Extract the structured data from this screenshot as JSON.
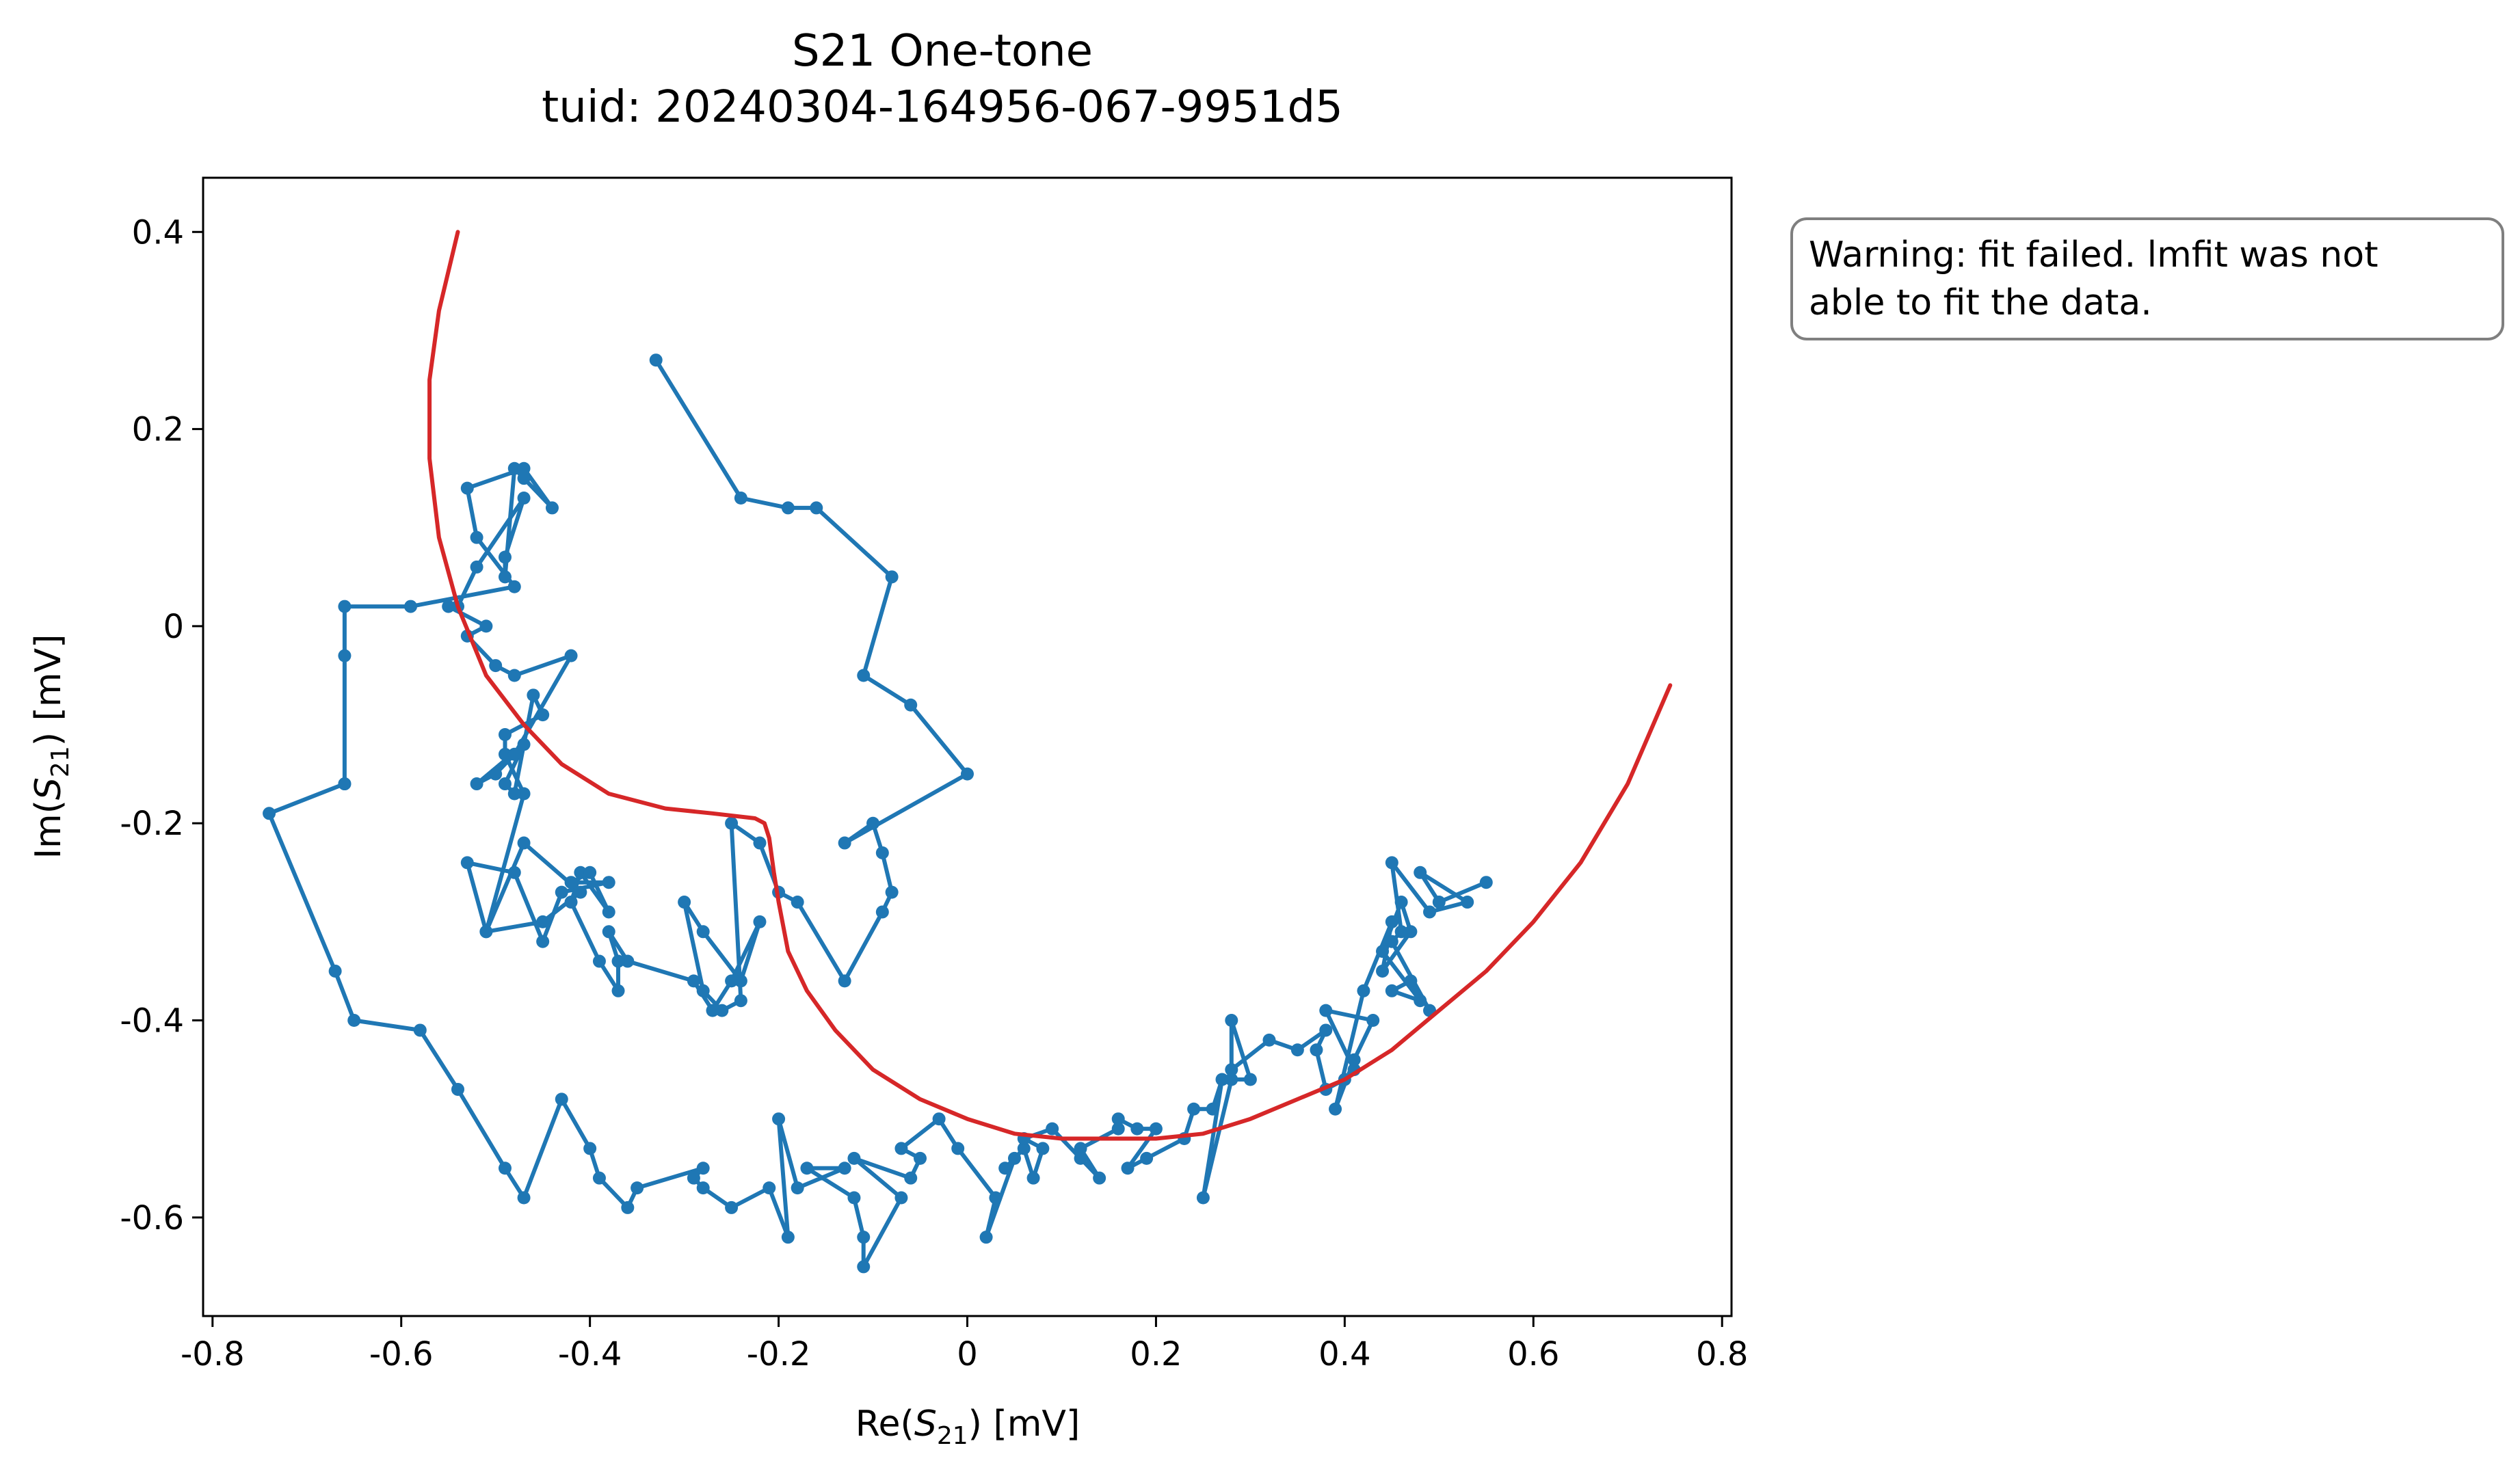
{
  "chart_data": {
    "type": "scatter",
    "title": [
      "S21 One-tone",
      "tuid: 20240304-164956-067-9951d5"
    ],
    "xlabel": {
      "prefix": "Re(",
      "symbol": "S",
      "sub": "21",
      "suffix": ") [mV]"
    },
    "ylabel": {
      "prefix": "Im(",
      "symbol": "S",
      "sub": "21",
      "suffix": ") [mV]"
    },
    "xlim": [
      -0.81,
      0.81
    ],
    "ylim": [
      -0.7,
      0.455
    ],
    "xticks": [
      -0.8,
      -0.6,
      -0.4,
      -0.2,
      0,
      0.2,
      0.4,
      0.6,
      0.8
    ],
    "xtick_labels": [
      "-0.8",
      "-0.6",
      "-0.4",
      "-0.2",
      "0",
      "0.2",
      "0.4",
      "0.6",
      "0.8"
    ],
    "yticks": [
      0.4,
      0.2,
      0,
      -0.2,
      -0.4,
      -0.6
    ],
    "ytick_labels": [
      "0.4",
      "0.2",
      "0",
      "-0.2",
      "-0.4",
      "-0.6"
    ],
    "grid": false,
    "annotation": {
      "lines": [
        "Warning: fit failed. lmfit was not",
        "able to fit the data."
      ],
      "placement": "outside-right-top"
    },
    "series": [
      {
        "color": "#1f77b4",
        "style": "line-with-markers",
        "x": [
          -0.33,
          -0.24,
          -0.19,
          -0.16,
          -0.08,
          -0.11,
          -0.06,
          0.0,
          -0.13,
          -0.1,
          -0.09,
          -0.08,
          -0.09,
          -0.13,
          -0.18,
          -0.2,
          -0.22,
          -0.25,
          -0.24,
          -0.26,
          -0.28,
          -0.3,
          -0.28,
          -0.24,
          -0.22,
          -0.25,
          -0.27,
          -0.29,
          -0.36,
          -0.38,
          -0.37,
          -0.37,
          -0.39,
          -0.42,
          -0.41,
          -0.38,
          -0.4,
          -0.42,
          -0.38,
          -0.43,
          -0.45,
          -0.48,
          -0.53,
          -0.51,
          -0.45,
          -0.41,
          -0.47,
          -0.51,
          -0.47,
          -0.49,
          -0.49,
          -0.45,
          -0.46,
          -0.48,
          -0.49,
          -0.47,
          -0.52,
          -0.5,
          -0.48,
          -0.42,
          -0.48,
          -0.5,
          -0.53,
          -0.51,
          -0.55,
          -0.54,
          -0.52,
          -0.47,
          -0.49,
          -0.49,
          -0.48,
          -0.47,
          -0.44,
          -0.47,
          -0.53,
          -0.52,
          -0.48,
          -0.59,
          -0.66,
          -0.66,
          -0.66,
          -0.66,
          -0.74,
          -0.67,
          -0.65,
          -0.58,
          -0.54,
          -0.49,
          -0.47,
          -0.43,
          -0.4,
          -0.39,
          -0.36,
          -0.35,
          -0.28,
          -0.29,
          -0.28,
          -0.25,
          -0.21,
          -0.19,
          -0.2,
          -0.18,
          -0.13,
          -0.17,
          -0.12,
          -0.11,
          -0.11,
          -0.07,
          -0.12,
          -0.06,
          -0.05,
          -0.07,
          -0.03,
          -0.01,
          0.03,
          0.02,
          0.05,
          0.04,
          0.06,
          0.07,
          0.08,
          0.06,
          0.09,
          0.12,
          0.14,
          0.12,
          0.16,
          0.16,
          0.18,
          0.2,
          0.17,
          0.19,
          0.23,
          0.24,
          0.26,
          0.27,
          0.25,
          0.28,
          0.3,
          0.28,
          0.28,
          0.32,
          0.35,
          0.38,
          0.37,
          0.38,
          0.4,
          0.41,
          0.38,
          0.43,
          0.41,
          0.39,
          0.42,
          0.45,
          0.44,
          0.47,
          0.46,
          0.44,
          0.48,
          0.45,
          0.47,
          0.49,
          0.45,
          0.46,
          0.45,
          0.49,
          0.53,
          0.48,
          0.5,
          0.55
        ],
        "y": [
          0.27,
          0.13,
          0.12,
          0.12,
          0.05,
          -0.05,
          -0.08,
          -0.15,
          -0.22,
          -0.2,
          -0.23,
          -0.27,
          -0.29,
          -0.36,
          -0.28,
          -0.27,
          -0.22,
          -0.2,
          -0.38,
          -0.39,
          -0.37,
          -0.28,
          -0.31,
          -0.36,
          -0.3,
          -0.36,
          -0.39,
          -0.36,
          -0.34,
          -0.31,
          -0.34,
          -0.37,
          -0.34,
          -0.28,
          -0.25,
          -0.29,
          -0.25,
          -0.26,
          -0.26,
          -0.27,
          -0.32,
          -0.25,
          -0.24,
          -0.31,
          -0.3,
          -0.27,
          -0.22,
          -0.31,
          -0.17,
          -0.13,
          -0.11,
          -0.09,
          -0.07,
          -0.17,
          -0.16,
          -0.12,
          -0.16,
          -0.15,
          -0.13,
          -0.03,
          -0.05,
          -0.04,
          -0.01,
          0.0,
          0.02,
          0.02,
          0.06,
          0.13,
          0.07,
          0.05,
          0.16,
          0.15,
          0.12,
          0.16,
          0.14,
          0.09,
          0.04,
          0.02,
          0.02,
          -0.03,
          -0.16,
          -0.16,
          -0.19,
          -0.35,
          -0.4,
          -0.41,
          -0.47,
          -0.55,
          -0.58,
          -0.48,
          -0.53,
          -0.56,
          -0.59,
          -0.57,
          -0.55,
          -0.56,
          -0.57,
          -0.59,
          -0.57,
          -0.62,
          -0.5,
          -0.57,
          -0.55,
          -0.55,
          -0.58,
          -0.62,
          -0.65,
          -0.58,
          -0.54,
          -0.56,
          -0.54,
          -0.53,
          -0.5,
          -0.53,
          -0.58,
          -0.62,
          -0.54,
          -0.55,
          -0.53,
          -0.56,
          -0.53,
          -0.52,
          -0.51,
          -0.54,
          -0.56,
          -0.53,
          -0.51,
          -0.5,
          -0.51,
          -0.51,
          -0.55,
          -0.54,
          -0.52,
          -0.49,
          -0.49,
          -0.46,
          -0.58,
          -0.46,
          -0.46,
          -0.4,
          -0.45,
          -0.42,
          -0.43,
          -0.41,
          -0.43,
          -0.47,
          -0.46,
          -0.45,
          -0.39,
          -0.4,
          -0.44,
          -0.49,
          -0.37,
          -0.3,
          -0.35,
          -0.31,
          -0.28,
          -0.33,
          -0.38,
          -0.37,
          -0.36,
          -0.39,
          -0.32,
          -0.31,
          -0.24,
          -0.29,
          -0.28,
          -0.25,
          -0.28,
          -0.26
        ]
      },
      {
        "color": "#d62728",
        "style": "line",
        "x": [
          -0.54,
          -0.56,
          -0.57,
          -0.57,
          -0.56,
          -0.54,
          -0.51,
          -0.47,
          -0.43,
          -0.38,
          -0.32,
          -0.27,
          -0.225,
          -0.215,
          -0.21,
          -0.205,
          -0.2,
          -0.19,
          -0.17,
          -0.14,
          -0.1,
          -0.05,
          0.0,
          0.05,
          0.1,
          0.15,
          0.2,
          0.25,
          0.3,
          0.35,
          0.4,
          0.45,
          0.5,
          0.55,
          0.6,
          0.65,
          0.7,
          0.745
        ],
        "y": [
          0.4,
          0.32,
          0.25,
          0.17,
          0.09,
          0.02,
          -0.05,
          -0.1,
          -0.14,
          -0.17,
          -0.185,
          -0.19,
          -0.195,
          -0.2,
          -0.215,
          -0.25,
          -0.28,
          -0.33,
          -0.37,
          -0.41,
          -0.45,
          -0.48,
          -0.5,
          -0.515,
          -0.52,
          -0.52,
          -0.52,
          -0.515,
          -0.5,
          -0.48,
          -0.46,
          -0.43,
          -0.39,
          -0.35,
          -0.3,
          -0.24,
          -0.16,
          -0.06
        ]
      }
    ]
  }
}
